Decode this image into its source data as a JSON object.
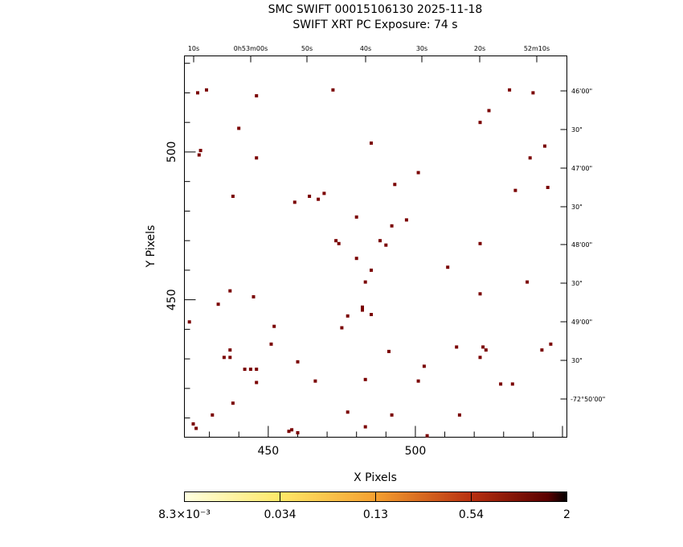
{
  "title_line1": "SMC SWIFT 00015106130 2025-11-18",
  "title_line2": "SWIFT XRT PC Exposure:         74 s",
  "chart_data": {
    "type": "scatter",
    "title": "SMC SWIFT 00015106130 2025-11-18",
    "subtitle": "SWIFT XRT PC Exposure:         74 s",
    "xlabel": "X Pixels",
    "ylabel": "Y Pixels",
    "xlim": [
      421.5,
      551.5
    ],
    "ylim": [
      403.5,
      532.5
    ],
    "x_ticks": [
      450,
      500
    ],
    "y_ticks": [
      450,
      500
    ],
    "marker_color": "#7a0000",
    "points": [
      [
        423.2,
        442.5
      ],
      [
        424.5,
        408
      ],
      [
        425.5,
        406.5
      ],
      [
        426,
        520
      ],
      [
        426.5,
        499
      ],
      [
        427,
        500.5
      ],
      [
        429,
        521
      ],
      [
        431,
        411
      ],
      [
        433,
        448.5
      ],
      [
        435,
        430.5
      ],
      [
        437,
        430.5
      ],
      [
        437,
        433
      ],
      [
        437,
        453
      ],
      [
        438,
        415
      ],
      [
        438,
        485
      ],
      [
        440,
        508
      ],
      [
        442,
        426.5
      ],
      [
        444,
        426.5
      ],
      [
        445,
        451
      ],
      [
        446,
        519
      ],
      [
        446,
        426.5
      ],
      [
        446,
        498
      ],
      [
        446,
        422
      ],
      [
        451,
        435
      ],
      [
        452,
        441
      ],
      [
        457,
        405.5
      ],
      [
        458,
        406
      ],
      [
        459,
        483
      ],
      [
        460,
        405
      ],
      [
        460,
        429
      ],
      [
        464,
        485
      ],
      [
        466,
        422.5
      ],
      [
        467,
        484
      ],
      [
        469,
        486
      ],
      [
        472,
        521
      ],
      [
        473,
        470
      ],
      [
        474,
        469
      ],
      [
        475,
        440.5
      ],
      [
        477,
        412
      ],
      [
        477,
        444.5
      ],
      [
        480,
        478
      ],
      [
        480,
        464
      ],
      [
        482,
        446.5
      ],
      [
        482,
        447.5
      ],
      [
        483,
        407
      ],
      [
        483,
        423
      ],
      [
        483,
        456
      ],
      [
        485,
        460
      ],
      [
        485,
        445
      ],
      [
        485,
        503
      ],
      [
        488,
        470
      ],
      [
        490,
        468.5
      ],
      [
        491,
        432.5
      ],
      [
        492,
        411
      ],
      [
        492,
        475
      ],
      [
        493,
        489
      ],
      [
        497,
        477
      ],
      [
        501,
        493
      ],
      [
        501,
        422.5
      ],
      [
        503,
        427.5
      ],
      [
        504,
        404
      ],
      [
        511,
        461
      ],
      [
        514,
        434
      ],
      [
        515,
        411
      ],
      [
        522,
        510
      ],
      [
        522,
        469
      ],
      [
        522,
        452
      ],
      [
        522,
        430.5
      ],
      [
        523,
        434
      ],
      [
        524,
        433
      ],
      [
        525,
        514
      ],
      [
        529,
        421.5
      ],
      [
        532,
        521
      ],
      [
        533,
        421.5
      ],
      [
        534,
        487
      ],
      [
        538,
        456
      ],
      [
        539,
        498
      ],
      [
        540,
        520
      ],
      [
        543,
        433
      ],
      [
        544,
        502
      ],
      [
        545,
        488
      ],
      [
        546,
        435
      ]
    ]
  },
  "top_axis_labels": [
    "10s",
    "0h53m00s",
    "50s",
    "40s",
    "30s",
    "20s",
    "52m10s"
  ],
  "right_axis_labels": [
    "46'00\"",
    "30\"",
    "47'00\"",
    "30\"",
    "48'00\"",
    "30\"",
    "49'00\"",
    "30\"",
    "-72°50'00\""
  ],
  "colorbar": {
    "labels": [
      "8.3×10⁻³",
      "0.034",
      "0.13",
      "0.54",
      "2"
    ],
    "colors": [
      "#ffffdc",
      "#ffe868",
      "#f7a430",
      "#d45216",
      "#8a0e00",
      "#000000"
    ]
  }
}
